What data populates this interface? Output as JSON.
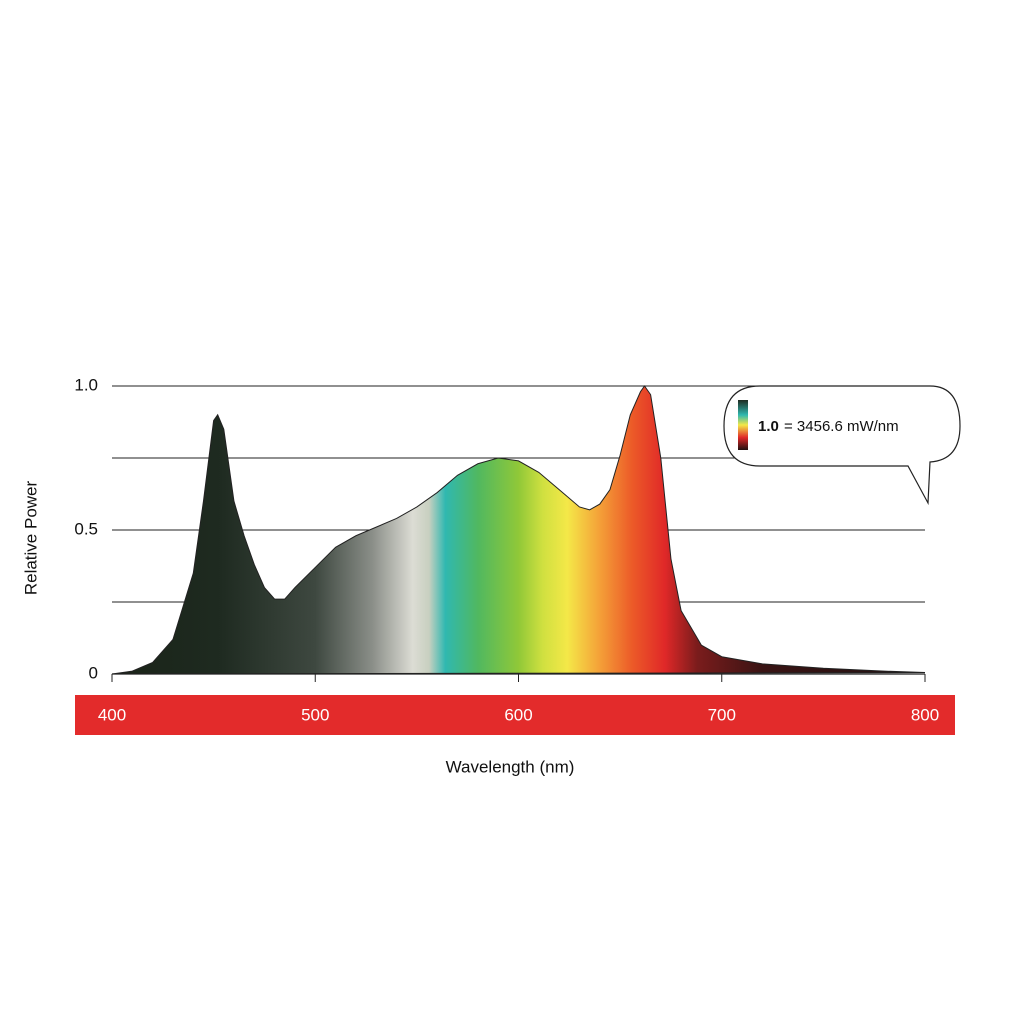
{
  "chart_data": {
    "type": "area",
    "y_label": "Relative Power",
    "x_label": "Wavelength (nm)",
    "annotation_value": "1.0",
    "annotation_text": "= 3456.6 mW/nm",
    "x": [
      400,
      410,
      420,
      430,
      440,
      445,
      450,
      452,
      455,
      460,
      465,
      470,
      475,
      480,
      485,
      490,
      500,
      510,
      520,
      530,
      540,
      550,
      560,
      570,
      580,
      590,
      600,
      610,
      620,
      630,
      635,
      640,
      645,
      650,
      655,
      660,
      662,
      665,
      670,
      675,
      680,
      690,
      700,
      720,
      750,
      780,
      800
    ],
    "values": [
      0,
      0.01,
      0.04,
      0.12,
      0.35,
      0.6,
      0.88,
      0.9,
      0.85,
      0.6,
      0.48,
      0.38,
      0.3,
      0.26,
      0.26,
      0.3,
      0.37,
      0.44,
      0.48,
      0.51,
      0.54,
      0.58,
      0.63,
      0.69,
      0.73,
      0.75,
      0.74,
      0.7,
      0.64,
      0.58,
      0.57,
      0.59,
      0.64,
      0.76,
      0.9,
      0.98,
      1.0,
      0.97,
      0.75,
      0.4,
      0.22,
      0.1,
      0.06,
      0.035,
      0.02,
      0.01,
      0.005
    ],
    "xlim": [
      400,
      800
    ],
    "ylim": [
      0,
      1
    ],
    "xticks": [
      400,
      500,
      600,
      700,
      800
    ],
    "yticks": [
      {
        "value": 1,
        "label": "1.0"
      },
      0.5,
      0
    ],
    "ygrid": [
      0.25,
      0.5,
      0.75,
      1
    ],
    "axis_band_color": "#e32b2b"
  }
}
